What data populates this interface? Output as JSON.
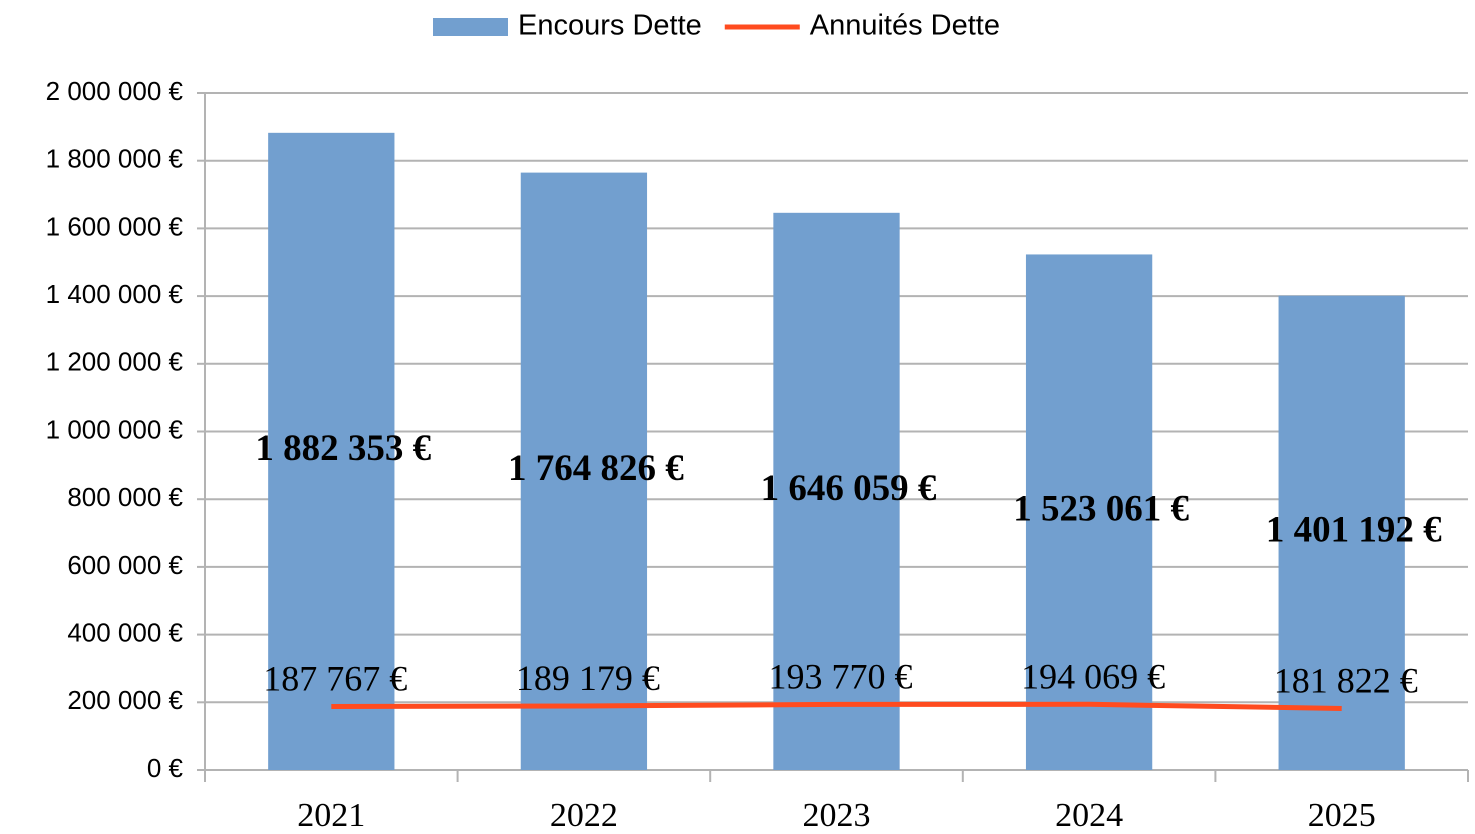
{
  "chart_data": {
    "type": "bar",
    "categories": [
      "2021",
      "2022",
      "2023",
      "2024",
      "2025"
    ],
    "series": [
      {
        "name": "Encours Dette",
        "type": "bar",
        "color": "#729fcf",
        "values": [
          1882353,
          1764826,
          1646059,
          1523061,
          1401192
        ],
        "value_labels": [
          "1 882 353 €",
          "1 764 826 €",
          "1 646 059 €",
          "1 523 061 €",
          "1 401 192 €"
        ]
      },
      {
        "name": "Annuités Dette",
        "type": "line",
        "color": "#ff4b1f",
        "values": [
          187767,
          189179,
          193770,
          194069,
          181822
        ],
        "value_labels": [
          "187 767 €",
          "189 179 €",
          "193 770 €",
          "194 069 €",
          "181 822 €"
        ]
      }
    ],
    "ylim": [
      0,
      2000000
    ],
    "yticks": [
      {
        "value": 0,
        "label": "0 €"
      },
      {
        "value": 200000,
        "label": "200 000 €"
      },
      {
        "value": 400000,
        "label": "400 000 €"
      },
      {
        "value": 600000,
        "label": "600 000 €"
      },
      {
        "value": 800000,
        "label": "800 000 €"
      },
      {
        "value": 1000000,
        "label": "1 000 000 €"
      },
      {
        "value": 1200000,
        "label": "1 200 000 €"
      },
      {
        "value": 1400000,
        "label": "1 400 000 €"
      },
      {
        "value": 1600000,
        "label": "1 600 000 €"
      },
      {
        "value": 1800000,
        "label": "1 800 000 €"
      },
      {
        "value": 2000000,
        "label": "2 000 000 €"
      }
    ],
    "grid": true,
    "legend": "top"
  }
}
